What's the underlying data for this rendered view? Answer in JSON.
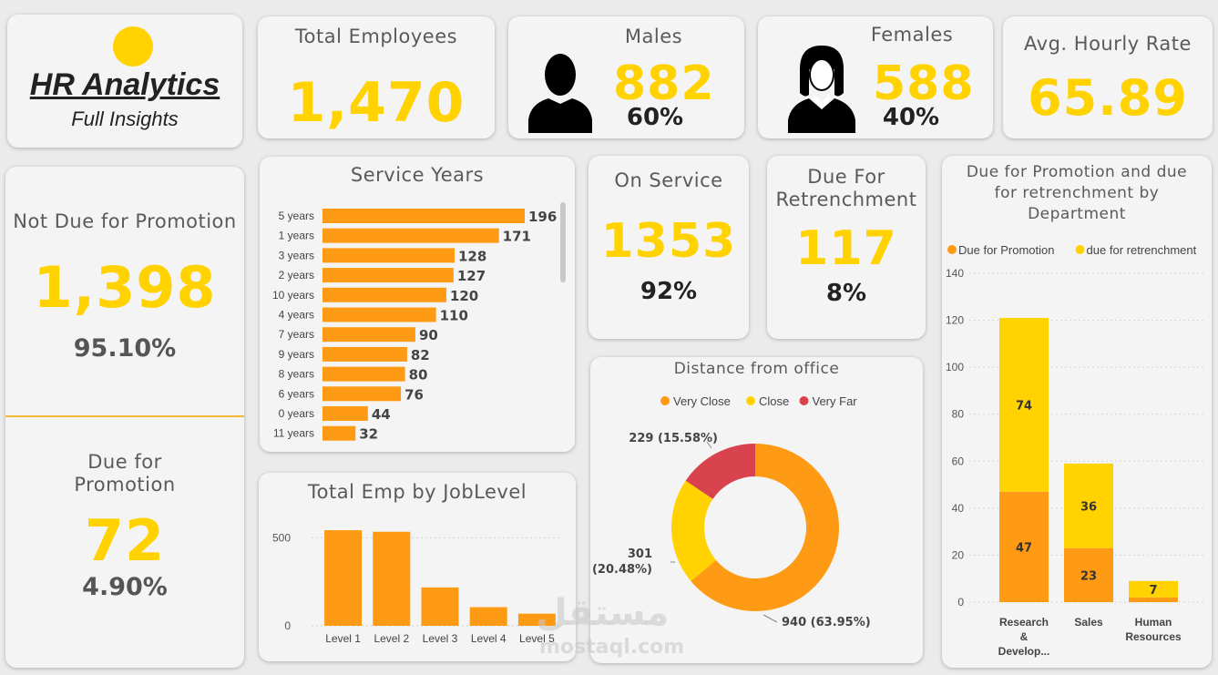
{
  "colors": {
    "yellow": "#ffd200",
    "orange": "#ff9a14",
    "red": "#d9434e",
    "text": "#555555",
    "card": "#f4f4f4"
  },
  "logo": {
    "title": "HR Analytics",
    "subtitle": "Full Insights"
  },
  "kpis": {
    "total_employees": {
      "label": "Total Employees",
      "value": "1,470"
    },
    "males": {
      "label": "Males",
      "value": "882",
      "pct": "60%",
      "icon": "male-person-icon"
    },
    "females": {
      "label": "Females",
      "value": "588",
      "pct": "40%",
      "icon": "female-person-icon"
    },
    "avg_hourly_rate": {
      "label": "Avg. Hourly Rate",
      "value": "65.89"
    },
    "not_due_promotion": {
      "label": "Not Due for Promotion",
      "value": "1,398",
      "pct": "95.10%"
    },
    "due_promotion": {
      "label_line1": "Due for",
      "label_line2": "Promotion",
      "value": "72",
      "pct": "4.90%"
    },
    "on_service": {
      "label": "On Service",
      "value": "1353",
      "pct": "92%"
    },
    "due_retrenchment": {
      "label_line1": "Due For",
      "label_line2": "Retrenchment",
      "value": "117",
      "pct": "8%"
    }
  },
  "watermark": {
    "arabic": "مستقل",
    "latin": "mostaql.com"
  },
  "chart_data": [
    {
      "type": "bar",
      "orientation": "horizontal",
      "title": "Service Years",
      "categories": [
        "5 years",
        "1 years",
        "3 years",
        "2 years",
        "10 years",
        "4 years",
        "7 years",
        "9 years",
        "8 years",
        "6 years",
        "0 years",
        "11 years"
      ],
      "values": [
        196,
        171,
        128,
        127,
        120,
        110,
        90,
        82,
        80,
        76,
        44,
        32
      ],
      "color": "#ff9a14"
    },
    {
      "type": "bar",
      "title": "Total Emp by JobLevel",
      "categories": [
        "Level 1",
        "Level 2",
        "Level 3",
        "Level 4",
        "Level 5"
      ],
      "values": [
        543,
        534,
        218,
        106,
        69
      ],
      "yticks": [
        "500",
        "0"
      ],
      "ylim": [
        0,
        600
      ],
      "color": "#ff9a14"
    },
    {
      "type": "pie",
      "title": "Distance from office",
      "legend": [
        "Very Close",
        "Close",
        "Very Far"
      ],
      "values": [
        940,
        301,
        229
      ],
      "labels": [
        "940 (63.95%)",
        "301 (20.48%)",
        "229 (15.58%)"
      ],
      "colors": [
        "#ff9a14",
        "#ffd200",
        "#d9434e"
      ]
    },
    {
      "type": "bar",
      "stacked": true,
      "title": "Due for Promotion and due for retrenchment by Department",
      "categories": [
        "Research & Develop...",
        "Sales",
        "Human Resources"
      ],
      "series": [
        {
          "name": "Due for Promotion",
          "values": [
            47,
            23,
            2
          ],
          "labels": [
            "47",
            "23",
            ""
          ],
          "color": "#ff9a14"
        },
        {
          "name": "due for retrenchment",
          "values": [
            74,
            36,
            7
          ],
          "labels": [
            "74",
            "36",
            "7"
          ],
          "color": "#ffd200"
        }
      ],
      "yticks": [
        "140",
        "120",
        "100",
        "80",
        "60",
        "40",
        "20",
        "0"
      ],
      "ylim": [
        0,
        140
      ],
      "legend_position": "top-left"
    }
  ]
}
